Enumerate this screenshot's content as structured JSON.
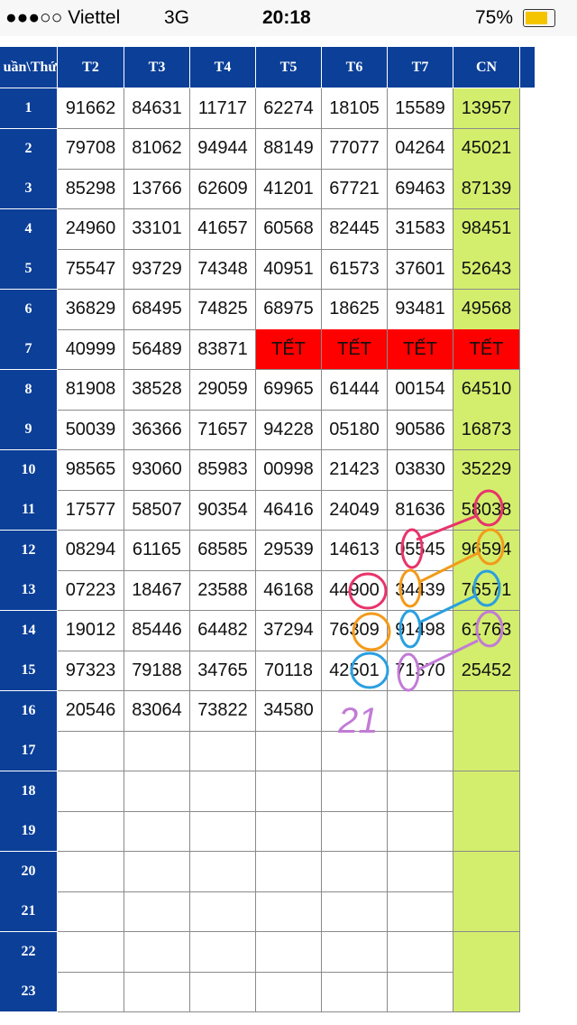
{
  "status_bar": {
    "carrier": "●●●○○ Viettel",
    "network": "3G",
    "time": "20:18",
    "battery": "75%"
  },
  "table": {
    "headers": [
      "uần\\Thứ",
      "T2",
      "T3",
      "T4",
      "T5",
      "T6",
      "T7",
      "CN"
    ],
    "rows": [
      [
        "1",
        "91662",
        "84631",
        "11717",
        "62274",
        "18105",
        "15589",
        "13957"
      ],
      [
        "2",
        "79708",
        "81062",
        "94944",
        "88149",
        "77077",
        "04264",
        "45021"
      ],
      [
        "3",
        "85298",
        "13766",
        "62609",
        "41201",
        "67721",
        "69463",
        "87139"
      ],
      [
        "4",
        "24960",
        "33101",
        "41657",
        "60568",
        "82445",
        "31583",
        "98451"
      ],
      [
        "5",
        "75547",
        "93729",
        "74348",
        "40951",
        "61573",
        "37601",
        "52643"
      ],
      [
        "6",
        "36829",
        "68495",
        "74825",
        "68975",
        "18625",
        "93481",
        "49568"
      ],
      [
        "7",
        "40999",
        "56489",
        "83871",
        "TẾT",
        "TẾT",
        "TẾT",
        "TẾT"
      ],
      [
        "8",
        "81908",
        "38528",
        "29059",
        "69965",
        "61444",
        "00154",
        "64510"
      ],
      [
        "9",
        "50039",
        "36366",
        "71657",
        "94228",
        "05180",
        "90586",
        "16873"
      ],
      [
        "10",
        "98565",
        "93060",
        "85983",
        "00998",
        "21423",
        "03830",
        "35229"
      ],
      [
        "11",
        "17577",
        "58507",
        "90354",
        "46416",
        "24049",
        "81636",
        "58038"
      ],
      [
        "12",
        "08294",
        "61165",
        "68585",
        "29539",
        "14613",
        "05545",
        "96594"
      ],
      [
        "13",
        "07223",
        "18467",
        "23588",
        "46168",
        "44900",
        "34439",
        "76571"
      ],
      [
        "14",
        "19012",
        "85446",
        "64482",
        "37294",
        "76309",
        "91498",
        "61763"
      ],
      [
        "15",
        "97323",
        "79188",
        "34765",
        "70118",
        "42501",
        "71370",
        "25452"
      ],
      [
        "16",
        "20546",
        "83064",
        "73822",
        "34580"
      ],
      [
        "17"
      ],
      [
        "18"
      ],
      [
        "19"
      ],
      [
        "20"
      ],
      [
        "21"
      ],
      [
        "22"
      ],
      [
        "23"
      ]
    ]
  },
  "annotation": "21"
}
